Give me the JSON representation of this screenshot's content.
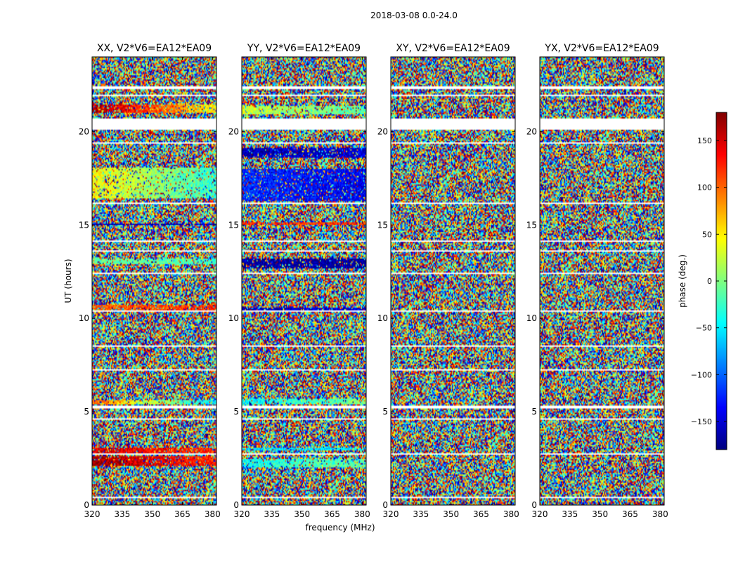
{
  "chart_data": {
    "type": "heatmap",
    "suptitle": "2018-03-08 0.0-24.0",
    "xlabel": "frequency (MHz)",
    "ylabel": "UT (hours)",
    "xlim": [
      320,
      382
    ],
    "ylim": [
      0,
      24
    ],
    "xticks": [
      320,
      335,
      350,
      365,
      380
    ],
    "yticks": [
      0,
      5,
      10,
      15,
      20
    ],
    "panels": [
      {
        "title": "XX, V2*V6=EA12*EA09",
        "pol": "XX",
        "coherent_bands": [
          {
            "t0": 21.0,
            "t1": 21.45,
            "phase0": 170,
            "phase1": 45
          },
          {
            "t0": 16.4,
            "t1": 18.1,
            "phase0": 45,
            "phase1": -30
          },
          {
            "t0": 15.0,
            "t1": 15.1,
            "phase0": -160,
            "phase1": -160
          },
          {
            "t0": 12.9,
            "t1": 13.2,
            "phase0": -10,
            "phase1": -20
          },
          {
            "t0": 10.45,
            "t1": 10.7,
            "phase0": 100,
            "phase1": 120
          },
          {
            "t0": 5.4,
            "t1": 5.6,
            "phase0": 100,
            "phase1": -60
          },
          {
            "t0": 2.8,
            "t1": 3.05,
            "phase0": 150,
            "phase1": 120
          },
          {
            "t0": 2.1,
            "t1": 2.6,
            "phase0": 170,
            "phase1": 120
          }
        ]
      },
      {
        "title": "YY, V2*V6=EA12*EA09",
        "pol": "YY",
        "coherent_bands": [
          {
            "t0": 20.9,
            "t1": 21.4,
            "phase0": 30,
            "phase1": -20
          },
          {
            "t0": 18.6,
            "t1": 19.1,
            "phase0": -160,
            "phase1": -150
          },
          {
            "t0": 16.3,
            "t1": 18.0,
            "phase0": -120,
            "phase1": -140
          },
          {
            "t0": 15.0,
            "t1": 15.15,
            "phase0": 120,
            "phase1": 110
          },
          {
            "t0": 12.7,
            "t1": 13.2,
            "phase0": -170,
            "phase1": -170
          },
          {
            "t0": 10.45,
            "t1": 10.6,
            "phase0": -160,
            "phase1": -150
          },
          {
            "t0": 5.4,
            "t1": 5.7,
            "phase0": -50,
            "phase1": 0
          },
          {
            "t0": 2.9,
            "t1": 3.1,
            "phase0": -60,
            "phase1": -50
          },
          {
            "t0": 2.0,
            "t1": 2.5,
            "phase0": -40,
            "phase1": -10
          }
        ]
      },
      {
        "title": "XY, V2*V6=EA12*EA09",
        "pol": "XY",
        "coherent_bands": []
      },
      {
        "title": "YX, V2*V6=EA12*EA09",
        "pol": "YX",
        "coherent_bands": []
      }
    ],
    "flagged_ut_ranges": [
      [
        20.1,
        20.7
      ],
      [
        19.35,
        19.45
      ],
      [
        22.3,
        22.4
      ],
      [
        21.9,
        22.0
      ],
      [
        16.15,
        16.2
      ],
      [
        15.2,
        15.25
      ],
      [
        14.1,
        14.15
      ],
      [
        13.6,
        13.65
      ],
      [
        12.4,
        12.45
      ],
      [
        11.9,
        11.95
      ],
      [
        10.35,
        10.4
      ],
      [
        9.6,
        9.63
      ],
      [
        8.5,
        8.55
      ],
      [
        7.2,
        7.25
      ],
      [
        6.5,
        6.53
      ],
      [
        5.15,
        5.3
      ],
      [
        4.6,
        4.65
      ],
      [
        3.5,
        3.55
      ],
      [
        2.7,
        2.75
      ],
      [
        1.4,
        1.45
      ],
      [
        0.4,
        0.45
      ]
    ],
    "colorbar": {
      "label": "phase (deg.)",
      "ticks": [
        150,
        100,
        50,
        0,
        -50,
        -100,
        -150
      ],
      "tick_labels": [
        "150",
        "100",
        "50",
        "0",
        "−50",
        "−100",
        "−150"
      ],
      "range": [
        -180,
        180
      ],
      "colormap": "jet"
    }
  }
}
